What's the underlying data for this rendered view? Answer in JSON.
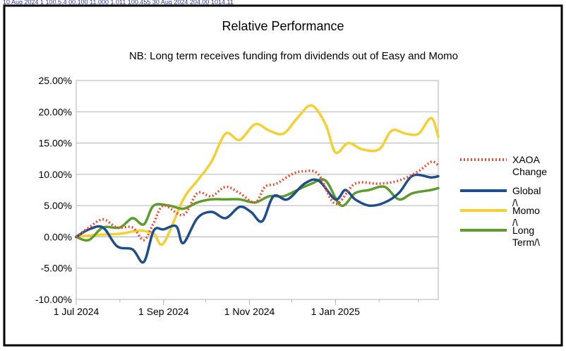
{
  "top_strip_text": "10 Aug 2024    1    100.5.4    00.100    11.000    1.011    100.455    30 Aug 2024    204.00    1014.11",
  "chart_data": {
    "type": "line",
    "title": "Relative Performance",
    "subtitle": "NB: Long term receives funding from dividends out of Easy and Momo",
    "xlabel": "",
    "ylabel": "",
    "x_ticks": [
      "1 Jul 2024",
      "1 Sep 2024",
      "1 Nov 2024",
      "1 Jan 2025"
    ],
    "x_range": [
      "2024-07-01",
      "2025-03-15"
    ],
    "ylim": [
      -0.1,
      0.25
    ],
    "y_ticks": [
      "25.00%",
      "20.00%",
      "15.00%",
      "10.00%",
      "5.00%",
      "0.00%",
      "-5.00%",
      "-10.00%"
    ],
    "grid": true,
    "legend_position": "right",
    "series": [
      {
        "name": "XAOA Change",
        "color": "#ee4d2e",
        "style": "dotted",
        "x": [
          "2024-07-01",
          "2024-07-10",
          "2024-07-20",
          "2024-07-30",
          "2024-08-10",
          "2024-08-18",
          "2024-08-25",
          "2024-09-01",
          "2024-09-15",
          "2024-09-25",
          "2024-10-05",
          "2024-10-15",
          "2024-10-25",
          "2024-11-05",
          "2024-11-12",
          "2024-11-20",
          "2024-12-01",
          "2024-12-10",
          "2024-12-20",
          "2025-01-01",
          "2025-01-15",
          "2025-02-01",
          "2025-02-15",
          "2025-03-01",
          "2025-03-10",
          "2025-03-15"
        ],
        "values": [
          0.0,
          0.015,
          0.028,
          0.015,
          0.015,
          -0.005,
          0.022,
          0.05,
          0.035,
          0.07,
          0.065,
          0.08,
          0.07,
          0.055,
          0.08,
          0.085,
          0.1,
          0.105,
          0.1,
          0.053,
          0.085,
          0.085,
          0.09,
          0.105,
          0.12,
          0.115
        ]
      },
      {
        "name": "Global /\\",
        "color": "#1f4e8c",
        "style": "solid",
        "x": [
          "2024-07-01",
          "2024-07-10",
          "2024-07-20",
          "2024-07-30",
          "2024-08-10",
          "2024-08-18",
          "2024-08-25",
          "2024-09-01",
          "2024-09-10",
          "2024-09-15",
          "2024-09-25",
          "2024-10-05",
          "2024-10-15",
          "2024-10-25",
          "2024-11-02",
          "2024-11-10",
          "2024-11-18",
          "2024-11-28",
          "2024-12-10",
          "2024-12-20",
          "2025-01-01",
          "2025-01-08",
          "2025-01-15",
          "2025-01-25",
          "2025-02-05",
          "2025-02-15",
          "2025-02-25",
          "2025-03-10",
          "2025-03-15"
        ],
        "values": [
          0.0,
          0.012,
          0.015,
          -0.015,
          -0.02,
          -0.04,
          0.01,
          0.012,
          0.017,
          -0.01,
          0.03,
          0.04,
          0.03,
          0.048,
          0.04,
          0.025,
          0.065,
          0.06,
          0.085,
          0.09,
          0.06,
          0.075,
          0.06,
          0.05,
          0.055,
          0.07,
          0.098,
          0.095,
          0.097
        ]
      },
      {
        "name": "Momo /\\",
        "color": "#f5d033",
        "style": "solid",
        "x": [
          "2024-07-01",
          "2024-07-15",
          "2024-08-01",
          "2024-08-15",
          "2024-08-25",
          "2024-09-01",
          "2024-09-15",
          "2024-09-25",
          "2024-10-05",
          "2024-10-15",
          "2024-10-25",
          "2024-11-05",
          "2024-11-15",
          "2024-11-25",
          "2024-12-05",
          "2024-12-15",
          "2024-12-25",
          "2025-01-01",
          "2025-01-10",
          "2025-01-20",
          "2025-02-01",
          "2025-02-10",
          "2025-02-20",
          "2025-03-01",
          "2025-03-10",
          "2025-03-15"
        ],
        "values": [
          0.0,
          0.003,
          0.005,
          0.01,
          0.005,
          -0.01,
          0.06,
          0.09,
          0.12,
          0.165,
          0.155,
          0.18,
          0.17,
          0.165,
          0.19,
          0.21,
          0.18,
          0.135,
          0.15,
          0.14,
          0.14,
          0.17,
          0.165,
          0.165,
          0.19,
          0.16
        ]
      },
      {
        "name": "Long Term/\\",
        "color": "#5e9c2d",
        "style": "solid",
        "x": [
          "2024-07-01",
          "2024-07-10",
          "2024-07-20",
          "2024-08-01",
          "2024-08-10",
          "2024-08-18",
          "2024-08-25",
          "2024-09-05",
          "2024-09-15",
          "2024-09-25",
          "2024-10-05",
          "2024-10-15",
          "2024-10-25",
          "2024-11-05",
          "2024-11-15",
          "2024-11-25",
          "2024-12-05",
          "2024-12-15",
          "2024-12-25",
          "2025-01-05",
          "2025-01-15",
          "2025-01-25",
          "2025-02-05",
          "2025-02-15",
          "2025-02-25",
          "2025-03-10",
          "2025-03-15"
        ],
        "values": [
          0.0,
          -0.005,
          0.015,
          0.015,
          0.03,
          0.02,
          0.05,
          0.05,
          0.045,
          0.055,
          0.06,
          0.06,
          0.06,
          0.055,
          0.065,
          0.065,
          0.075,
          0.085,
          0.09,
          0.05,
          0.07,
          0.075,
          0.08,
          0.06,
          0.07,
          0.075,
          0.078
        ]
      }
    ]
  }
}
